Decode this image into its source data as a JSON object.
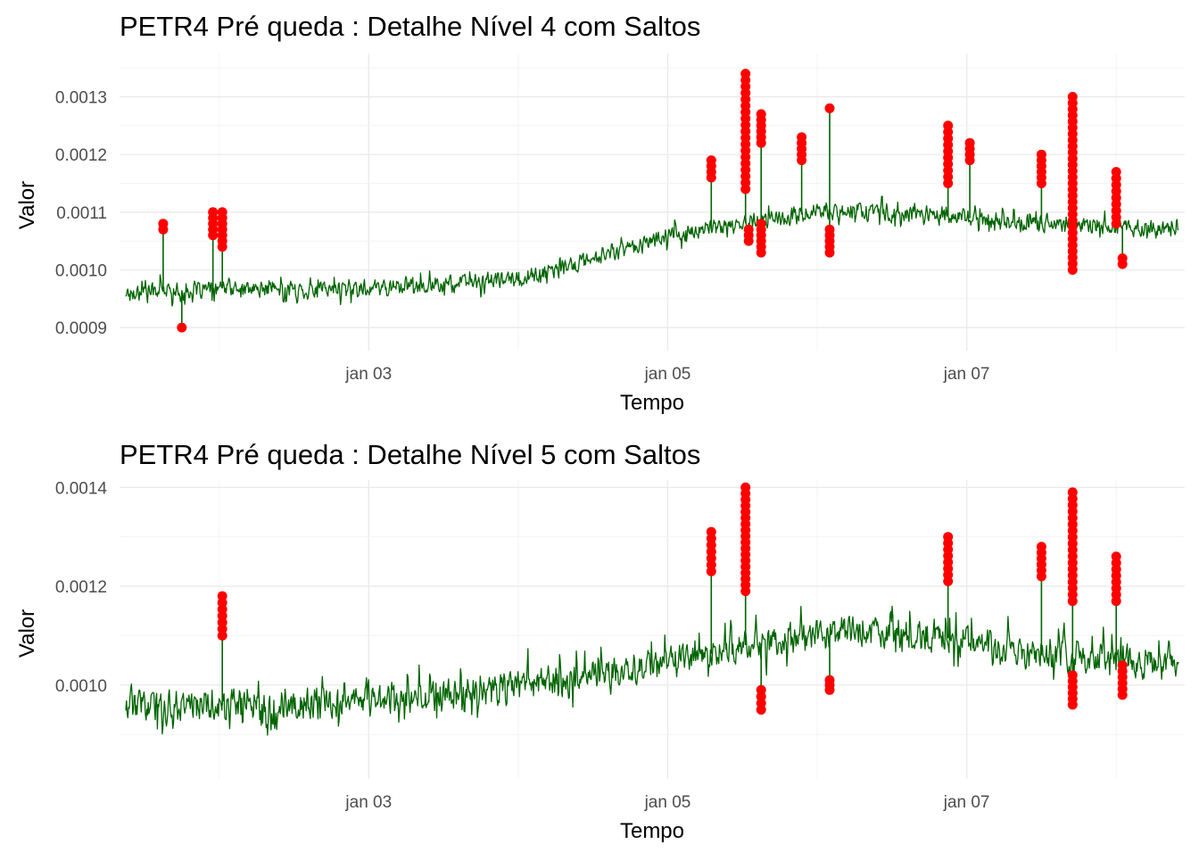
{
  "chart_data": [
    {
      "type": "line",
      "title": "PETR4 Pré queda : Detalhe Nível 4 com Saltos",
      "xlabel": "Tempo",
      "ylabel": "Valor",
      "x_range": [
        "2000-01-01T08:00",
        "2000-01-08T11:00"
      ],
      "x_ticks": [
        {
          "x": "2000-01-03T00:00",
          "label": "jan 03"
        },
        {
          "x": "2000-01-05T00:00",
          "label": "jan 05"
        },
        {
          "x": "2000-01-07T00:00",
          "label": "jan 07"
        }
      ],
      "ylim": [
        0.00086,
        0.001375
      ],
      "y_ticks": [
        {
          "y": 0.0009,
          "label": "0.0009"
        },
        {
          "y": 0.001,
          "label": "0.0010"
        },
        {
          "y": 0.0011,
          "label": "0.0011"
        },
        {
          "y": 0.0012,
          "label": "0.0012"
        },
        {
          "y": 0.0013,
          "label": "0.0013"
        }
      ],
      "grid": true,
      "line_color": "#006400",
      "point_color": "#ff0000",
      "series": [
        {
          "values": [
            [
              "2000-01-01T09:00",
              0.00096
            ],
            [
              "2000-01-01T12:00",
              0.000965
            ],
            [
              "2000-01-01T18:00",
              0.000962
            ],
            [
              "2000-01-02T00:00",
              0.000968
            ],
            [
              "2000-01-02T12:00",
              0.000965
            ],
            [
              "2000-01-03T00:00",
              0.00097
            ],
            [
              "2000-01-03T12:00",
              0.000975
            ],
            [
              "2000-01-04T00:00",
              0.000985
            ],
            [
              "2000-01-04T06:00",
              0.000998
            ],
            [
              "2000-01-04T12:00",
              0.00102
            ],
            [
              "2000-01-04T18:00",
              0.00104
            ],
            [
              "2000-01-05T00:00",
              0.00106
            ],
            [
              "2000-01-05T06:00",
              0.00107
            ],
            [
              "2000-01-05T12:00",
              0.00108
            ],
            [
              "2000-01-05T18:00",
              0.00109
            ],
            [
              "2000-01-06T00:00",
              0.0011
            ],
            [
              "2000-01-06T06:00",
              0.001105
            ],
            [
              "2000-01-06T12:00",
              0.001095
            ],
            [
              "2000-01-06T18:00",
              0.0011
            ],
            [
              "2000-01-07T00:00",
              0.00109
            ],
            [
              "2000-01-07T06:00",
              0.001085
            ],
            [
              "2000-01-07T12:00",
              0.00108
            ],
            [
              "2000-01-07T18:00",
              0.00108
            ],
            [
              "2000-01-08T00:00",
              0.001075
            ],
            [
              "2000-01-08T06:00",
              0.00107
            ],
            [
              "2000-01-08T10:00",
              0.00107
            ]
          ]
        }
      ],
      "jumps": [
        {
          "x": "2000-01-01T15:00",
          "y_low": 0.00107,
          "y_high": 0.00108
        },
        {
          "x": "2000-01-01T18:00",
          "y_low": 0.0009,
          "y_high": 0.0009
        },
        {
          "x": "2000-01-01T23:00",
          "y_low": 0.00106,
          "y_high": 0.0011
        },
        {
          "x": "2000-01-02T00:30",
          "y_low": 0.00104,
          "y_high": 0.0011
        },
        {
          "x": "2000-01-05T07:00",
          "y_low": 0.00116,
          "y_high": 0.00119
        },
        {
          "x": "2000-01-05T12:30",
          "y_low": 0.00114,
          "y_high": 0.00134
        },
        {
          "x": "2000-01-05T13:00",
          "y_low": 0.00105,
          "y_high": 0.00107
        },
        {
          "x": "2000-01-05T15:00",
          "y_low": 0.00103,
          "y_high": 0.00108
        },
        {
          "x": "2000-01-05T15:00",
          "y_low": 0.00122,
          "y_high": 0.00127
        },
        {
          "x": "2000-01-05T21:30",
          "y_low": 0.00119,
          "y_high": 0.00123
        },
        {
          "x": "2000-01-06T02:00",
          "y_low": 0.00128,
          "y_high": 0.00128
        },
        {
          "x": "2000-01-06T02:00",
          "y_low": 0.00103,
          "y_high": 0.00107
        },
        {
          "x": "2000-01-06T21:00",
          "y_low": 0.00115,
          "y_high": 0.00125
        },
        {
          "x": "2000-01-07T00:30",
          "y_low": 0.00119,
          "y_high": 0.00122
        },
        {
          "x": "2000-01-07T12:00",
          "y_low": 0.00115,
          "y_high": 0.0012
        },
        {
          "x": "2000-01-07T17:00",
          "y_low": 0.001,
          "y_high": 0.0013
        },
        {
          "x": "2000-01-08T00:00",
          "y_low": 0.00108,
          "y_high": 0.00117
        },
        {
          "x": "2000-01-08T01:00",
          "y_low": 0.00101,
          "y_high": 0.00102
        }
      ]
    },
    {
      "type": "line",
      "title": "PETR4 Pré queda : Detalhe Nível 5 com Saltos",
      "xlabel": "Tempo",
      "ylabel": "Valor",
      "x_range": [
        "2000-01-01T08:00",
        "2000-01-08T11:00"
      ],
      "x_ticks": [
        {
          "x": "2000-01-03T00:00",
          "label": "jan 03"
        },
        {
          "x": "2000-01-05T00:00",
          "label": "jan 05"
        },
        {
          "x": "2000-01-07T00:00",
          "label": "jan 07"
        }
      ],
      "ylim": [
        0.00081,
        0.001415
      ],
      "y_ticks": [
        {
          "y": 0.001,
          "label": "0.0010"
        },
        {
          "y": 0.0012,
          "label": "0.0012"
        },
        {
          "y": 0.0014,
          "label": "0.0014"
        }
      ],
      "grid": true,
      "line_color": "#006400",
      "point_color": "#ff0000",
      "series": [
        {
          "values": [
            [
              "2000-01-01T09:00",
              0.00096
            ],
            [
              "2000-01-01T18:00",
              0.00096
            ],
            [
              "2000-01-02T00:00",
              0.00096
            ],
            [
              "2000-01-02T12:00",
              0.00096
            ],
            [
              "2000-01-03T00:00",
              0.00097
            ],
            [
              "2000-01-03T12:00",
              0.00098
            ],
            [
              "2000-01-04T00:00",
              0.001
            ],
            [
              "2000-01-04T06:00",
              0.00101
            ],
            [
              "2000-01-04T12:00",
              0.00102
            ],
            [
              "2000-01-04T18:00",
              0.00103
            ],
            [
              "2000-01-05T00:00",
              0.00105
            ],
            [
              "2000-01-05T06:00",
              0.00106
            ],
            [
              "2000-01-05T12:00",
              0.00108
            ],
            [
              "2000-01-05T18:00",
              0.00109
            ],
            [
              "2000-01-06T00:00",
              0.0011
            ],
            [
              "2000-01-06T12:00",
              0.00111
            ],
            [
              "2000-01-07T00:00",
              0.00109
            ],
            [
              "2000-01-07T12:00",
              0.00106
            ],
            [
              "2000-01-08T00:00",
              0.00105
            ],
            [
              "2000-01-08T10:00",
              0.00104
            ]
          ]
        }
      ],
      "jumps": [
        {
          "x": "2000-01-02T00:30",
          "y_low": 0.0011,
          "y_high": 0.00118
        },
        {
          "x": "2000-01-05T07:00",
          "y_low": 0.00123,
          "y_high": 0.00131
        },
        {
          "x": "2000-01-05T12:30",
          "y_low": 0.00119,
          "y_high": 0.0014
        },
        {
          "x": "2000-01-05T15:00",
          "y_low": 0.00095,
          "y_high": 0.00099
        },
        {
          "x": "2000-01-06T02:00",
          "y_low": 0.00099,
          "y_high": 0.00101
        },
        {
          "x": "2000-01-06T21:00",
          "y_low": 0.00121,
          "y_high": 0.0013
        },
        {
          "x": "2000-01-07T12:00",
          "y_low": 0.00122,
          "y_high": 0.00128
        },
        {
          "x": "2000-01-07T17:00",
          "y_low": 0.00117,
          "y_high": 0.00139
        },
        {
          "x": "2000-01-07T17:00",
          "y_low": 0.00096,
          "y_high": 0.00102
        },
        {
          "x": "2000-01-08T00:00",
          "y_low": 0.00117,
          "y_high": 0.00126
        },
        {
          "x": "2000-01-08T01:00",
          "y_low": 0.00098,
          "y_high": 0.00104
        }
      ]
    }
  ]
}
